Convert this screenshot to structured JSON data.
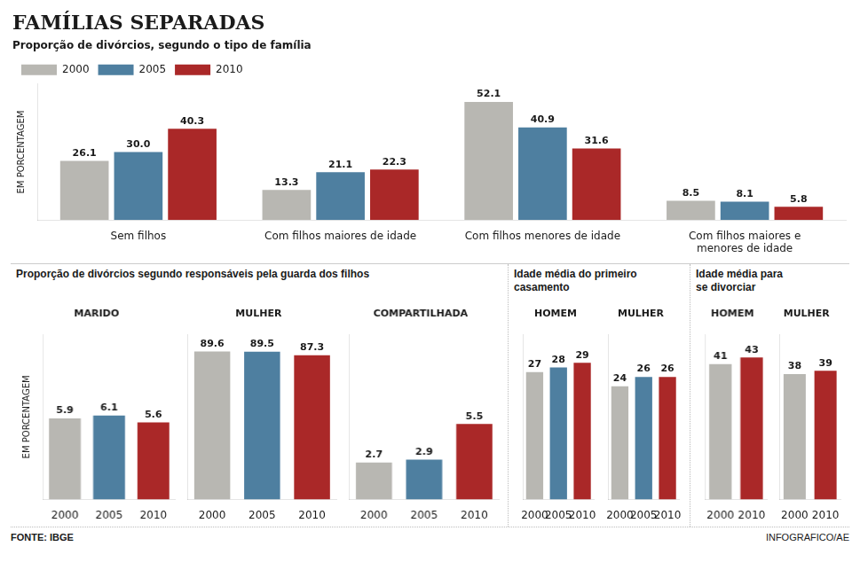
{
  "chart_data": [
    {
      "type": "bar",
      "title": "FAMÍLIAS SEPARADAS",
      "subtitle": "Proporção de divórcios, segundo o tipo de família",
      "ylabel": "EM PORCENTAGEM",
      "categories": [
        "Sem filhos",
        "Com filhos maiores de idade",
        "Com filhos menores de idade",
        "Com filhos maiores e\nmenores de idade"
      ],
      "series": [
        {
          "name": "2000",
          "color": "#b8b7b2",
          "values": [
            26.1,
            13.3,
            52.1,
            8.5
          ]
        },
        {
          "name": "2005",
          "color": "#4e7fa0",
          "values": [
            30.0,
            21.1,
            40.9,
            8.1
          ],
          "value_labels": [
            "30.0",
            "21.1",
            "40.9",
            "8.1"
          ]
        },
        {
          "name": "2010",
          "color": "#aa2828",
          "values": [
            40.3,
            22.3,
            31.6,
            5.8
          ]
        }
      ],
      "ylim": [
        0,
        60
      ],
      "grid": false,
      "legend": "top",
      "data_labels": true,
      "tick_labels": "x"
    },
    {
      "type": "bar",
      "subtitle": "Proporção de divórcios segundo responsáveis pela guarda dos filhos",
      "ylabel": "EM PORCENTAGEM",
      "title": "MARIDO",
      "categories": [
        "2000",
        "2005",
        "2010"
      ],
      "values": [
        5.9,
        6.1,
        5.6
      ],
      "colors": [
        "#b8b7b2",
        "#4e7fa0",
        "#aa2828"
      ],
      "ylim": [
        0,
        12
      ],
      "grid": false,
      "data_labels": true,
      "tick_labels": "x"
    },
    {
      "type": "bar",
      "title": "MULHER",
      "categories": [
        "2000",
        "2005",
        "2010"
      ],
      "values": [
        89.6,
        89.5,
        87.3
      ],
      "colors": [
        "#b8b7b2",
        "#4e7fa0",
        "#aa2828"
      ],
      "ylim": [
        0,
        100
      ],
      "grid": false,
      "data_labels": true,
      "tick_labels": "x"
    },
    {
      "type": "bar",
      "title": "COMPARTILHADA",
      "categories": [
        "2000",
        "2005",
        "2010"
      ],
      "values": [
        2.7,
        2.9,
        5.5
      ],
      "colors": [
        "#b8b7b2",
        "#4e7fa0",
        "#aa2828"
      ],
      "ylim": [
        0,
        12
      ],
      "grid": false,
      "data_labels": true,
      "tick_labels": "x"
    },
    {
      "type": "bar",
      "subtitle": "Idade média do primeiro\ncasamento",
      "title": "HOMEM",
      "categories": [
        "2000",
        "2005",
        "2010"
      ],
      "values": [
        27,
        28,
        29
      ],
      "colors": [
        "#b8b7b2",
        "#4e7fa0",
        "#aa2828"
      ],
      "ylim": [
        0,
        35
      ],
      "grid": false,
      "data_labels": true,
      "tick_labels": "x"
    },
    {
      "type": "bar",
      "title": "MULHER",
      "categories": [
        "2000",
        "2005",
        "2010"
      ],
      "values": [
        24,
        26,
        26
      ],
      "colors": [
        "#b8b7b2",
        "#4e7fa0",
        "#aa2828"
      ],
      "ylim": [
        0,
        35
      ],
      "grid": false,
      "data_labels": true,
      "tick_labels": "x"
    },
    {
      "type": "bar",
      "subtitle": "Idade média para\nse divorciar",
      "title": "HOMEM",
      "categories": [
        "2000",
        "2010"
      ],
      "values": [
        41,
        43
      ],
      "colors": [
        "#b8b7b2",
        "#aa2828"
      ],
      "ylim": [
        0,
        50
      ],
      "grid": false,
      "data_labels": true,
      "tick_labels": "x"
    },
    {
      "type": "bar",
      "title": "MULHER",
      "categories": [
        "2000",
        "2010"
      ],
      "values": [
        38,
        39
      ],
      "colors": [
        "#b8b7b2",
        "#aa2828"
      ],
      "ylim": [
        0,
        50
      ],
      "grid": false,
      "data_labels": true,
      "tick_labels": "x",
      "annotations": [
        "FONTE: IBGE",
        "INFOGRAFICO/AE"
      ]
    }
  ]
}
